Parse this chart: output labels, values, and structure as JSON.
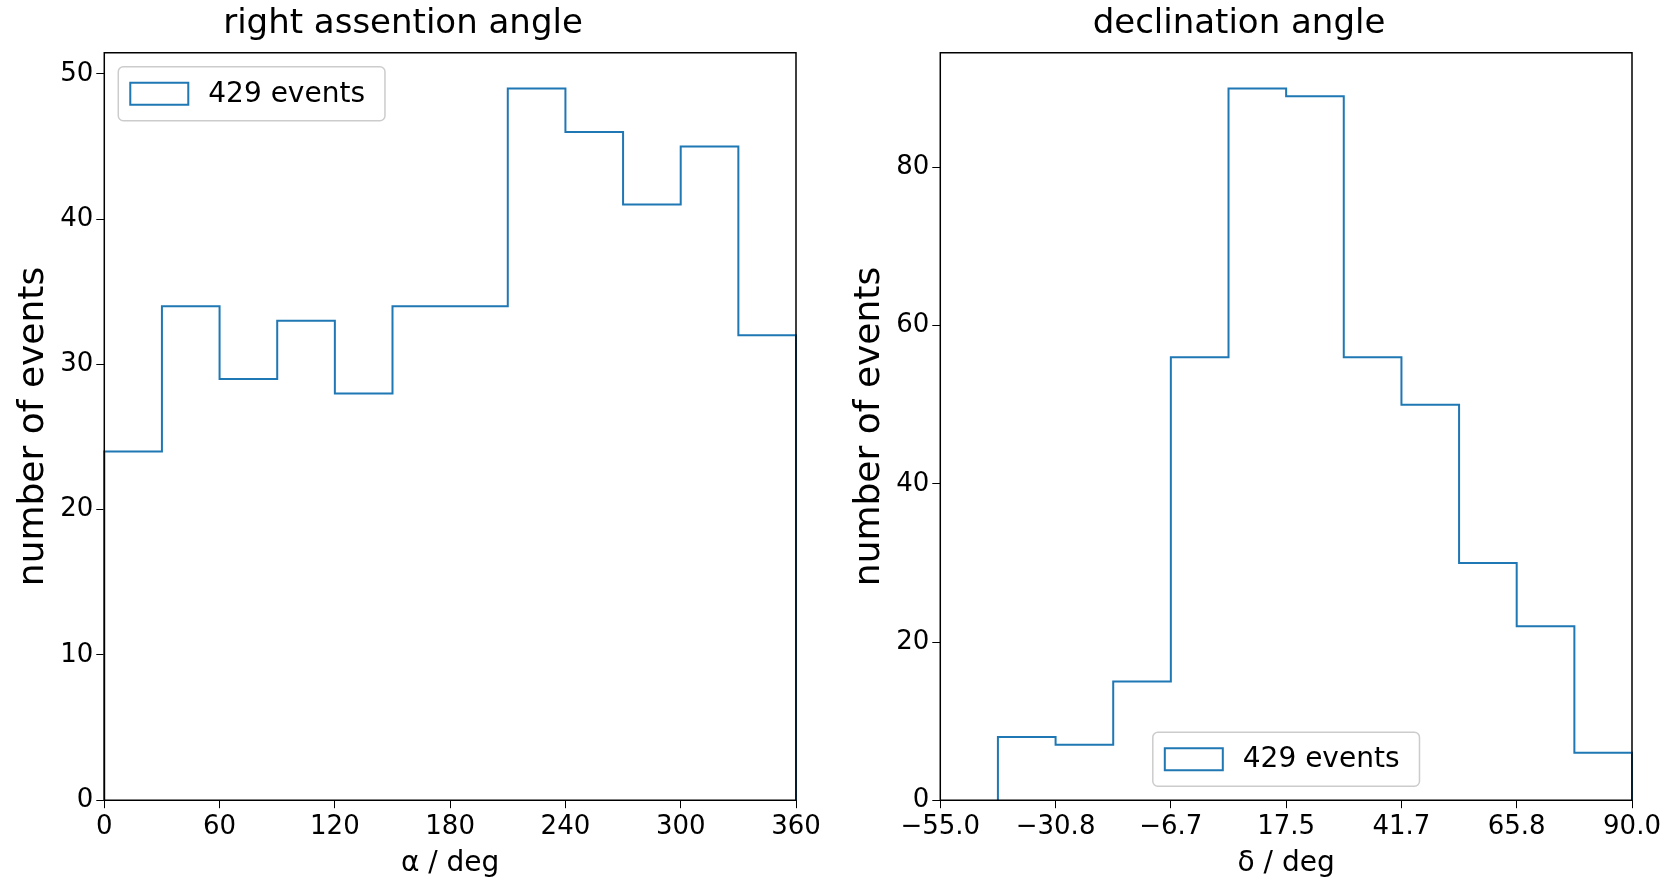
{
  "chart_data": [
    {
      "type": "histogram",
      "title": "right assention angle",
      "xlabel": "α / deg",
      "ylabel": "number of events",
      "bins": [
        0,
        30,
        60,
        90,
        120,
        150,
        180,
        210,
        240,
        270,
        300,
        330,
        360
      ],
      "series": [
        {
          "name": "429 events",
          "color": "#1f77b4",
          "values": [
            24,
            34,
            29,
            33,
            28,
            34,
            34,
            49,
            46,
            41,
            45,
            32
          ]
        }
      ],
      "xlim": [
        0,
        360
      ],
      "xticks": [
        0,
        60,
        120,
        180,
        240,
        300,
        360
      ],
      "ylim": [
        0,
        51.45
      ],
      "yticks": [
        0,
        10,
        20,
        30,
        40,
        50
      ],
      "legend": "top left",
      "grid": false
    },
    {
      "type": "histogram",
      "title": "declination angle",
      "xlabel": "δ / deg",
      "ylabel": "number of events",
      "bins": [
        -42.92,
        -30.83,
        -18.75,
        -6.67,
        5.42,
        17.5,
        29.58,
        41.67,
        53.75,
        65.83,
        77.92,
        90
      ],
      "series": [
        {
          "name": "429 events",
          "color": "#1f77b4",
          "values": [
            8,
            7,
            15,
            56,
            90,
            89,
            56,
            50,
            30,
            22,
            6
          ]
        }
      ],
      "xlim": [
        -55,
        90
      ],
      "xticks": [
        {
          "value": -55,
          "label": "−55.0"
        },
        {
          "value": -30.83,
          "label": "−30.8"
        },
        {
          "value": -6.67,
          "label": "−6.7"
        },
        {
          "value": 17.5,
          "label": "17.5"
        },
        {
          "value": 41.67,
          "label": "41.7"
        },
        {
          "value": 65.83,
          "label": "65.8"
        },
        {
          "value": 90,
          "label": "90.0"
        }
      ],
      "ylim": [
        0,
        94.5
      ],
      "yticks": [
        0,
        20,
        40,
        60,
        80
      ],
      "legend": "bottom",
      "grid": false
    }
  ]
}
